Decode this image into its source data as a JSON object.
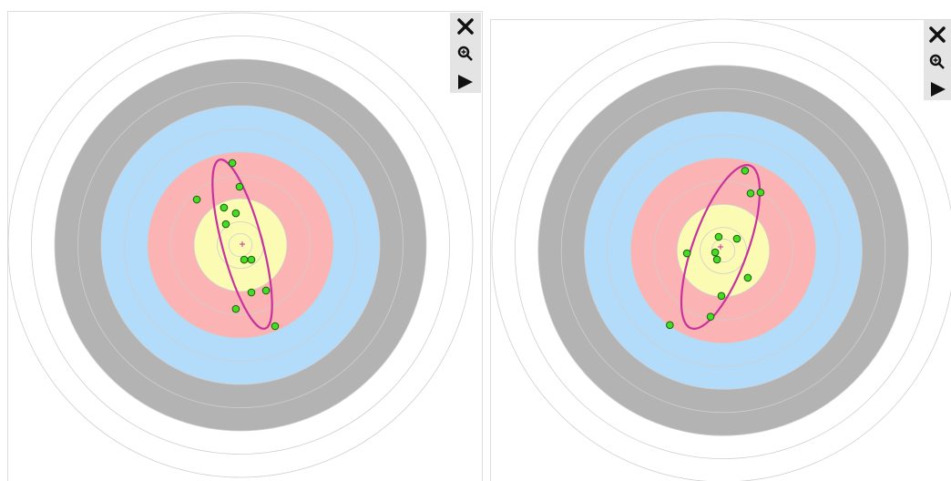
{
  "chart_data": [
    {
      "type": "scatter",
      "x": [
        -0.35,
        -0.04,
        -1.88,
        -0.71,
        -0.2,
        -0.63,
        0.16,
        0.47,
        0.47,
        1.1,
        -0.2,
        1.49
      ],
      "y": [
        3.53,
        2.51,
        1.96,
        1.61,
        1.37,
        0.9,
        -0.63,
        -0.63,
        -2.04,
        -1.96,
        -2.75,
        -3.49
      ],
      "color": "#44dd22",
      "xlim": [
        -10,
        10
      ],
      "ylim": [
        -10,
        10
      ],
      "ring_colors": [
        "#ffffff",
        "#ffffff",
        "#b3b3b3",
        "#b3b3b3",
        "#b3dcfb",
        "#b3dcfb",
        "#fbb3b3",
        "#fbb3b3",
        "#fbfbb3",
        "#fbfbb3"
      ]
    },
    {
      "type": "scatter",
      "x": [
        0.94,
        1.18,
        1.61,
        -0.2,
        0.59,
        -1.57,
        -0.35,
        -0.27,
        1.06,
        -0.08,
        -0.55,
        -2.31
      ],
      "y": [
        3.45,
        2.47,
        2.51,
        0.59,
        0.51,
        -0.12,
        -0.08,
        -0.39,
        -1.18,
        -1.96,
        -2.86,
        -3.22
      ],
      "color": "#44dd22",
      "xlim": [
        -10,
        10
      ],
      "ylim": [
        -10,
        10
      ],
      "ring_colors": [
        "#ffffff",
        "#ffffff",
        "#b3b3b3",
        "#b3b3b3",
        "#b3dcfb",
        "#b3dcfb",
        "#fbb3b3",
        "#fbb3b3",
        "#fbfbb3",
        "#fbfbb3"
      ]
    }
  ]
}
